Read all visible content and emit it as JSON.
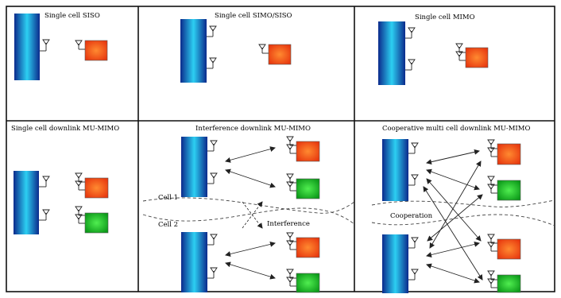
{
  "panels": {
    "p1": {
      "title": "Single cell SISO"
    },
    "p2": {
      "title": "Single cell SIMO/SISO"
    },
    "p3": {
      "title": "Single cell MIMO"
    },
    "p4": {
      "title": "Single cell downlink MU-MIMO"
    },
    "p5": {
      "title": "Interference downlink MU-MIMO",
      "cell1": "Cell 1",
      "cell2": "Cell 2",
      "interference": "Interference"
    },
    "p6": {
      "title": "Cooperative multi cell downlink MU-MIMO",
      "cooperation": "Cooperation"
    }
  },
  "colors": {
    "base_station_dark": "#0a2a8a",
    "base_station_light": "#28c8f0",
    "user_red": "#f04010",
    "user_red_light": "#ff7a30",
    "user_green": "#10b020",
    "user_green_light": "#40e040",
    "line": "#222222"
  }
}
